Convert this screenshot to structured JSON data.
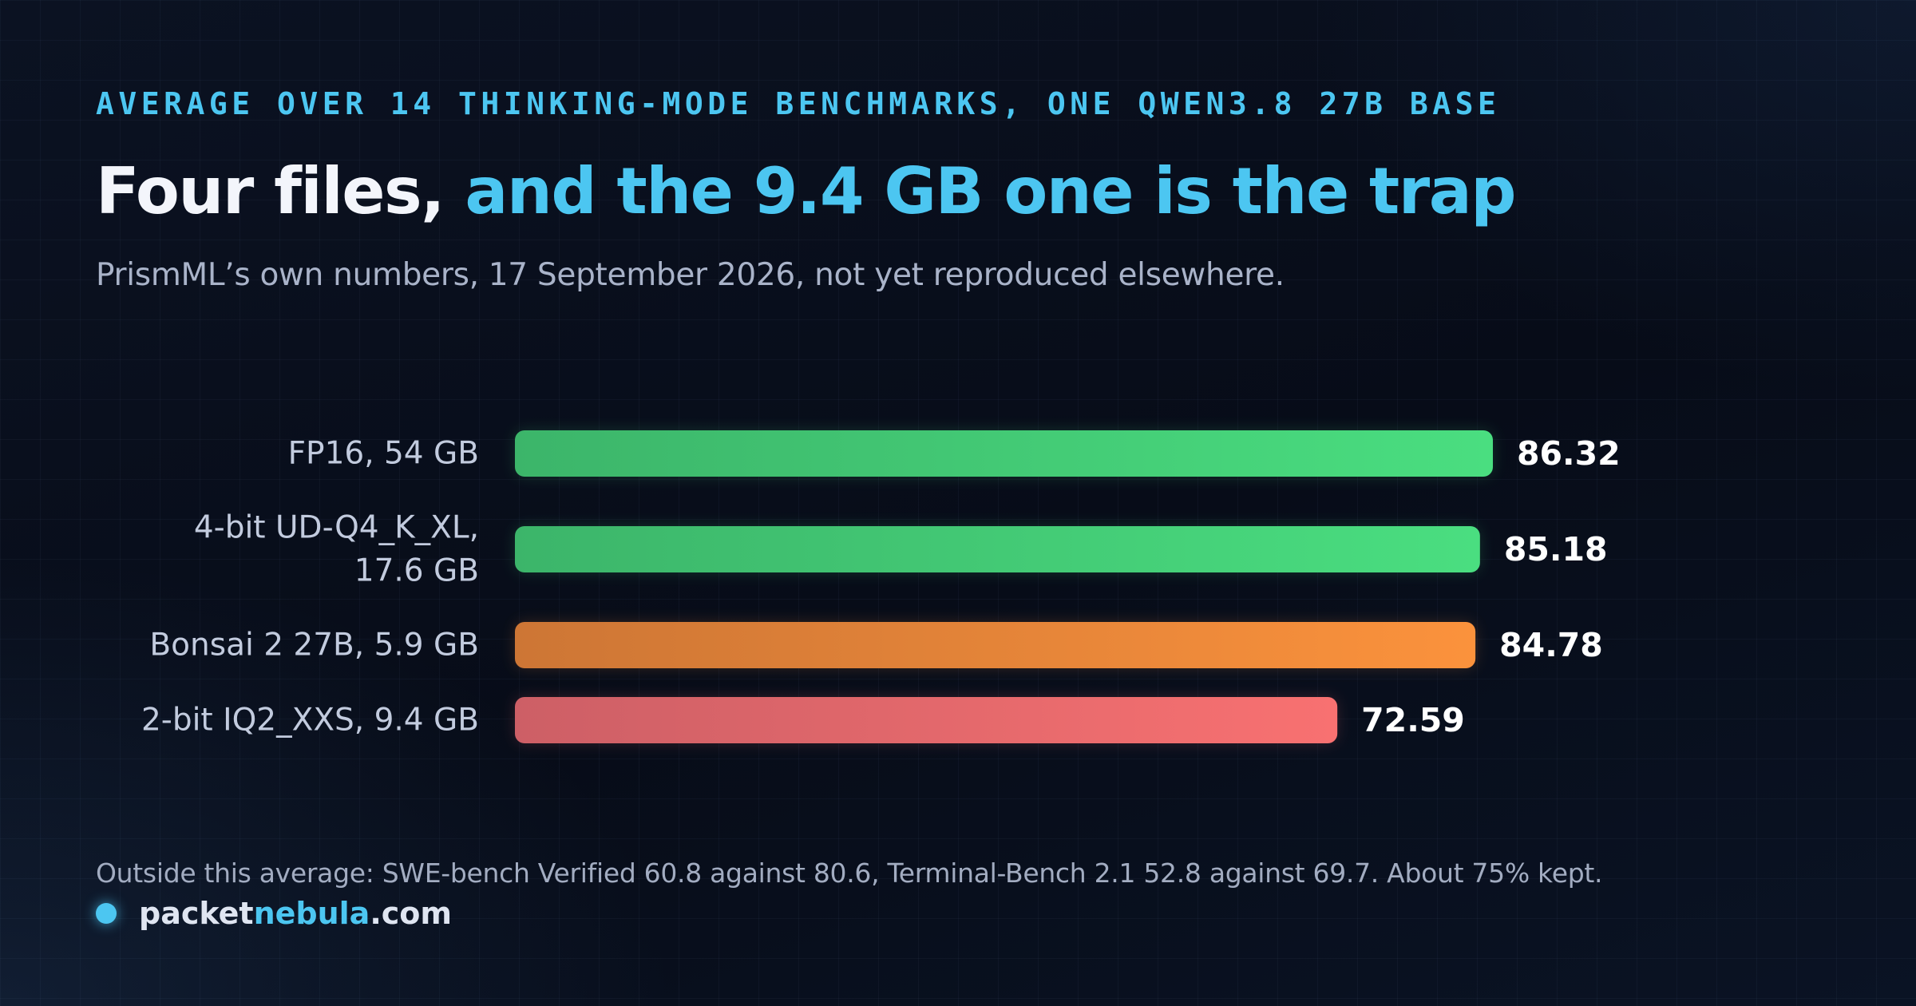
{
  "header": {
    "kicker": "AVERAGE OVER 14 THINKING-MODE BENCHMARKS, ONE QWEN3.8 27B BASE",
    "title_part1": "Four files,",
    "title_part2": "and the 9.4 GB one is the trap",
    "subtitle": "PrismML’s own numbers, 17 September 2026, not yet reproduced elsewhere."
  },
  "chart_data": {
    "type": "bar",
    "orientation": "horizontal",
    "title": "Four files, and the 9.4 GB one is the trap",
    "xlabel": "",
    "ylabel": "",
    "xlim": [
      0,
      86.32
    ],
    "grid": false,
    "legend": "none",
    "categories": [
      [
        "FP16, 54 GB"
      ],
      [
        "4-bit UD-Q4_K_XL,",
        "17.6 GB"
      ],
      [
        "Bonsai 2 27B, 5.9 GB"
      ],
      [
        "2-bit IQ2_XXS, 9.4 GB"
      ]
    ],
    "values": [
      86.32,
      85.18,
      84.78,
      72.59
    ],
    "value_labels": [
      "86.32",
      "85.18",
      "84.78",
      "72.59"
    ],
    "bar_colors": [
      [
        "#3cb56a",
        "#4ade80"
      ],
      [
        "#3cb56a",
        "#4ade80"
      ],
      [
        "#cd7635",
        "#fb923c"
      ],
      [
        "#cd5f66",
        "#f87171"
      ]
    ]
  },
  "footer": {
    "note": "Outside this average: SWE-bench Verified 60.8 against 80.6, Terminal-Bench 2.1 52.8 against 69.7. About 75% kept.",
    "brand_part1": "packet",
    "brand_part2": "nebula",
    "brand_part3": ".com"
  },
  "colors": {
    "accent": "#4cc6f1",
    "background": "#080d1a"
  }
}
